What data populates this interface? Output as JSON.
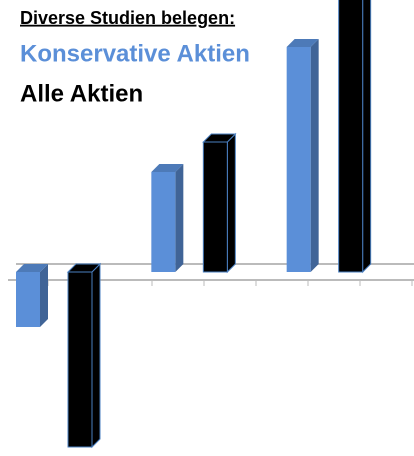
{
  "chart_data": {
    "type": "bar3d",
    "title": "Diverse Studien belegen:",
    "categories": [
      null,
      null,
      null
    ],
    "series": [
      {
        "name": "Konservative Aktien",
        "color": "#5b8fd8",
        "values": [
          -5.5,
          10,
          22.5
        ]
      },
      {
        "name": "Alle Aktien",
        "color": "#000000",
        "values": [
          -17.5,
          13,
          28
        ]
      }
    ],
    "ylim": [
      -18.4,
      27.2
    ]
  }
}
